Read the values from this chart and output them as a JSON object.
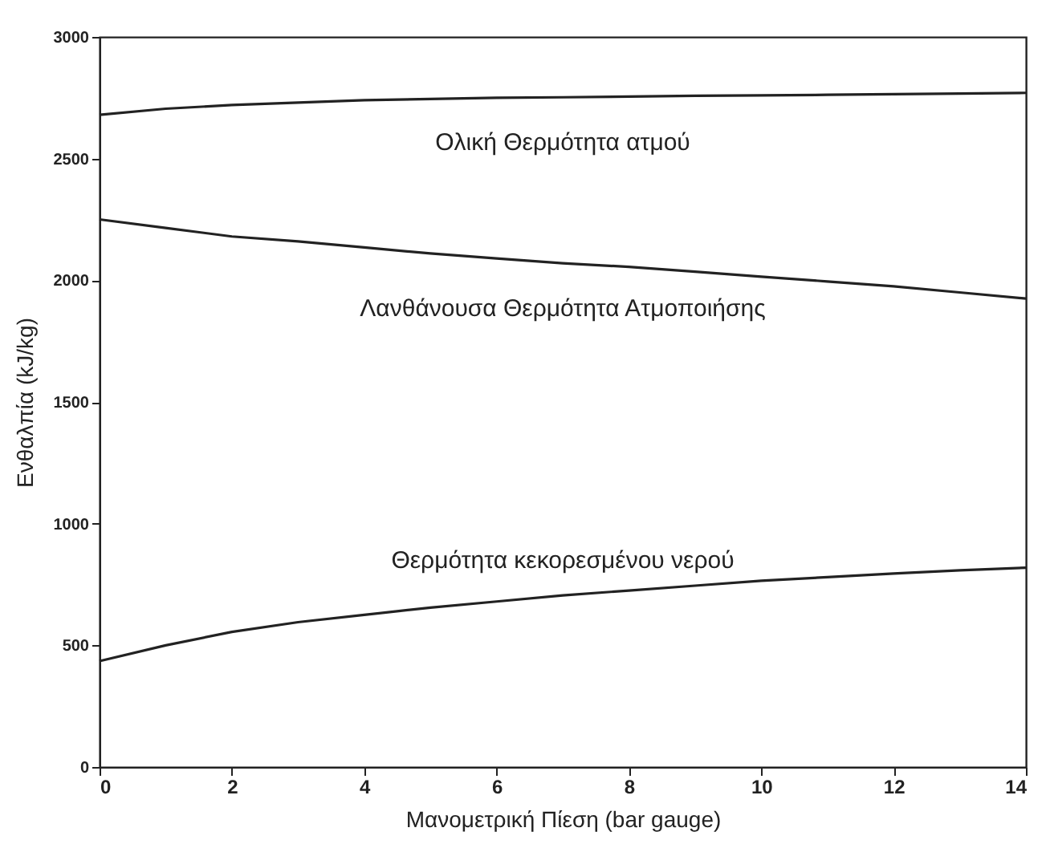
{
  "chart_data": {
    "type": "line",
    "xlabel": "Μανομετρική Πίεση (bar gauge)",
    "ylabel": "Ενθαλπία  (kJ/kg)",
    "x": [
      0,
      1,
      2,
      3,
      4,
      5,
      6,
      7,
      8,
      9,
      10,
      11,
      12,
      13,
      14
    ],
    "series": [
      {
        "name": "Ολική Θερμότητα ατμού",
        "color": "#222222",
        "values": [
          2680,
          2705,
          2720,
          2730,
          2740,
          2745,
          2750,
          2752,
          2755,
          2758,
          2760,
          2762,
          2765,
          2767,
          2770
        ]
      },
      {
        "name": "Λανθάνουσα Θερμότητα Ατμοποιήσης",
        "color": "#222222",
        "values": [
          2250,
          2215,
          2180,
          2160,
          2135,
          2110,
          2090,
          2070,
          2055,
          2035,
          2015,
          1995,
          1975,
          1950,
          1925
        ]
      },
      {
        "name": "Θερμότητα κεκορεσμένου νερού",
        "color": "#222222",
        "values": [
          435,
          500,
          555,
          595,
          625,
          655,
          680,
          705,
          725,
          745,
          765,
          780,
          795,
          808,
          819
        ]
      }
    ],
    "xlim": [
      0,
      14
    ],
    "xticks": [
      0,
      2,
      4,
      6,
      8,
      10,
      12,
      14
    ],
    "ylim": [
      0,
      3000
    ],
    "yticks": [
      0,
      500,
      1000,
      1500,
      2000,
      2500,
      3000
    ],
    "grid": false,
    "marker": "none",
    "line_style": "solid"
  }
}
